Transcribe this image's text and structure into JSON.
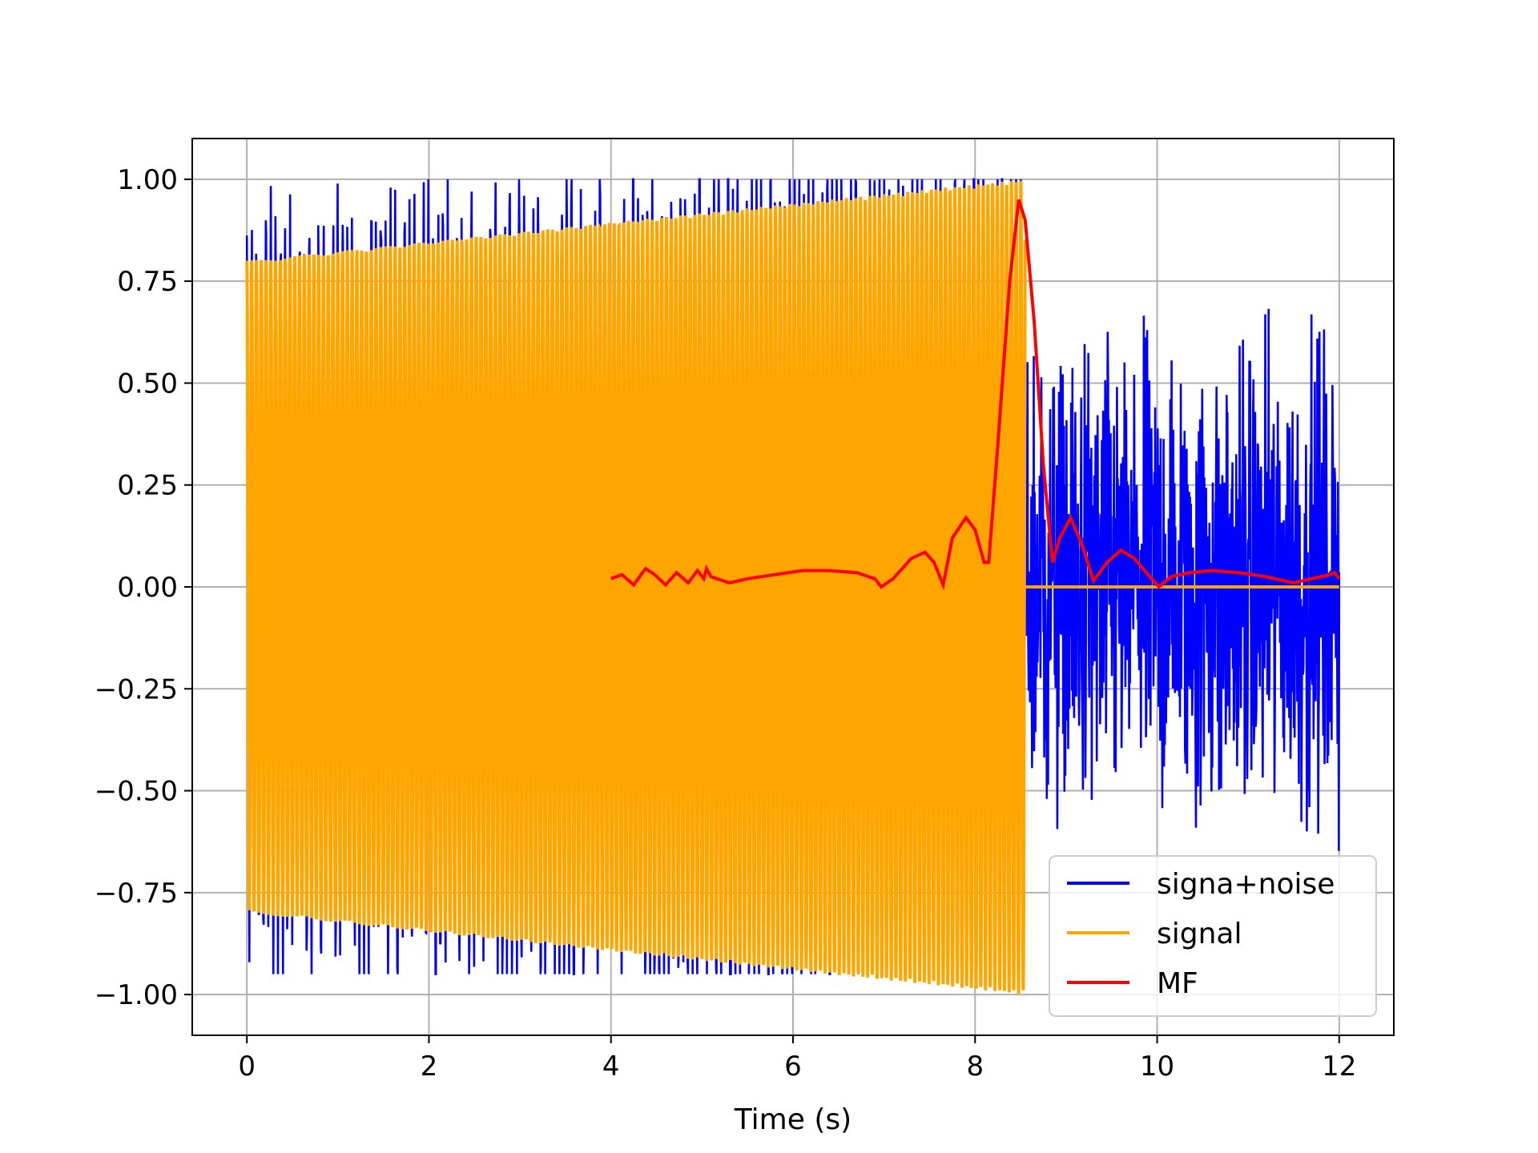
{
  "chart_data": {
    "type": "line",
    "title": "",
    "xlabel": "Time (s)",
    "ylabel": "",
    "xlim": [
      -0.6,
      12.6
    ],
    "ylim": [
      -1.1,
      1.1
    ],
    "grid": true,
    "legend_position": "lower right",
    "xticks": [
      0,
      2,
      4,
      6,
      8,
      10,
      12
    ],
    "xtick_labels": [
      "0",
      "2",
      "4",
      "6",
      "8",
      "10",
      "12"
    ],
    "yticks": [
      -1.0,
      -0.75,
      -0.5,
      -0.25,
      0.0,
      0.25,
      0.5,
      0.75,
      1.0
    ],
    "ytick_labels": [
      "−1.00",
      "−0.75",
      "−0.50",
      "−0.25",
      "0.00",
      "0.25",
      "0.50",
      "0.75",
      "1.00"
    ],
    "series": [
      {
        "name": "signa+noise",
        "color": "#0000ff",
        "description_values": {
          "x_range": [
            0,
            12
          ],
          "amplitude_range_during_signal": [
            -0.95,
            1.0
          ],
          "amplitude_range_noise_only": [
            -0.8,
            0.88
          ]
        }
      },
      {
        "name": "signal",
        "color": "#ffa500",
        "envelope": {
          "x": [
            0,
            8.55
          ],
          "amplitude": [
            0.8,
            1.0
          ]
        },
        "zero_segment_x": [
          8.55,
          12
        ]
      },
      {
        "name": "MF",
        "color": "#ff0000",
        "x": [
          4.0,
          4.12,
          4.25,
          4.38,
          4.48,
          4.6,
          4.72,
          4.85,
          4.95,
          5.02,
          5.05,
          5.1,
          5.3,
          5.5,
          5.8,
          6.1,
          6.4,
          6.7,
          6.9,
          6.97,
          7.1,
          7.3,
          7.45,
          7.55,
          7.65,
          7.75,
          7.9,
          8.0,
          8.1,
          8.15,
          8.25,
          8.38,
          8.48,
          8.55,
          8.65,
          8.75,
          8.85,
          8.93,
          9.05,
          9.18,
          9.3,
          9.45,
          9.6,
          9.75,
          9.9,
          10.02,
          10.15,
          10.35,
          10.6,
          10.9,
          11.2,
          11.5,
          11.7,
          11.9,
          11.95,
          12.0
        ],
        "y": [
          0.02,
          0.03,
          0.005,
          0.045,
          0.03,
          0.005,
          0.035,
          0.01,
          0.04,
          0.02,
          0.045,
          0.025,
          0.01,
          0.02,
          0.03,
          0.04,
          0.04,
          0.035,
          0.02,
          0.0,
          0.02,
          0.07,
          0.085,
          0.06,
          0.005,
          0.12,
          0.17,
          0.14,
          0.06,
          0.06,
          0.35,
          0.75,
          0.95,
          0.9,
          0.65,
          0.3,
          0.06,
          0.12,
          0.17,
          0.1,
          0.015,
          0.06,
          0.09,
          0.07,
          0.03,
          0.0,
          0.025,
          0.035,
          0.04,
          0.035,
          0.025,
          0.01,
          0.02,
          0.03,
          0.035,
          0.02
        ]
      }
    ]
  }
}
